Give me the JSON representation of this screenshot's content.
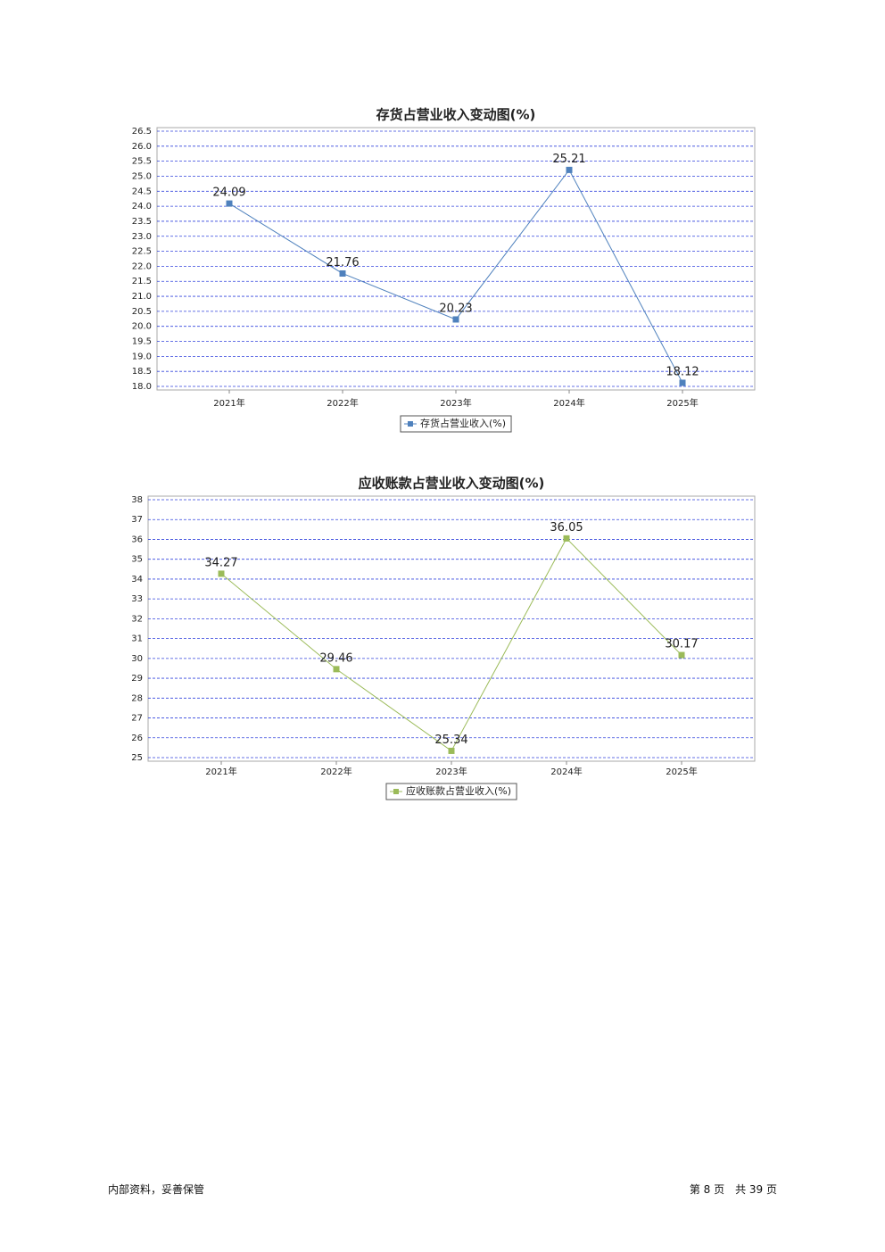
{
  "chart_data": [
    {
      "type": "line",
      "title": "存货占营业收入变动图(%)",
      "categories": [
        "2021年",
        "2022年",
        "2023年",
        "2024年",
        "2025年"
      ],
      "series": [
        {
          "name": "存货占营业收入(%)",
          "color": "#4f81bd",
          "values": [
            24.09,
            21.76,
            20.23,
            25.21,
            18.12
          ]
        }
      ],
      "ylim": [
        18,
        26.5
      ],
      "yticks": [
        {
          "value": 18,
          "label": "18.0"
        },
        18.5,
        {
          "value": 19,
          "label": "19.0"
        },
        19.5,
        {
          "value": 20,
          "label": "20.0"
        },
        20.5,
        {
          "value": 21,
          "label": "21.0"
        },
        21.5,
        {
          "value": 22,
          "label": "22.0"
        },
        22.5,
        {
          "value": 23,
          "label": "23.0"
        },
        23.5,
        {
          "value": 24,
          "label": "24.0"
        },
        24.5,
        {
          "value": 25,
          "label": "25.0"
        },
        25.5,
        {
          "value": 26,
          "label": "26.0"
        },
        26.5
      ],
      "grid": true,
      "legend": "bottom"
    },
    {
      "type": "line",
      "title": "应收账款占营业收入变动图(%)",
      "categories": [
        "2021年",
        "2022年",
        "2023年",
        "2024年",
        "2025年"
      ],
      "series": [
        {
          "name": "应收账款占营业收入(%)",
          "color": "#9bbb59",
          "values": [
            34.27,
            29.46,
            25.34,
            36.05,
            30.17
          ]
        }
      ],
      "ylim": [
        25,
        38
      ],
      "yticks": [
        25,
        26,
        27,
        28,
        29,
        30,
        31,
        32,
        33,
        34,
        35,
        36,
        37,
        38
      ],
      "grid": true,
      "legend": "bottom"
    }
  ],
  "footer": {
    "left": "内部资料，妥善保管",
    "right": "第 8 页　共 39 页"
  }
}
